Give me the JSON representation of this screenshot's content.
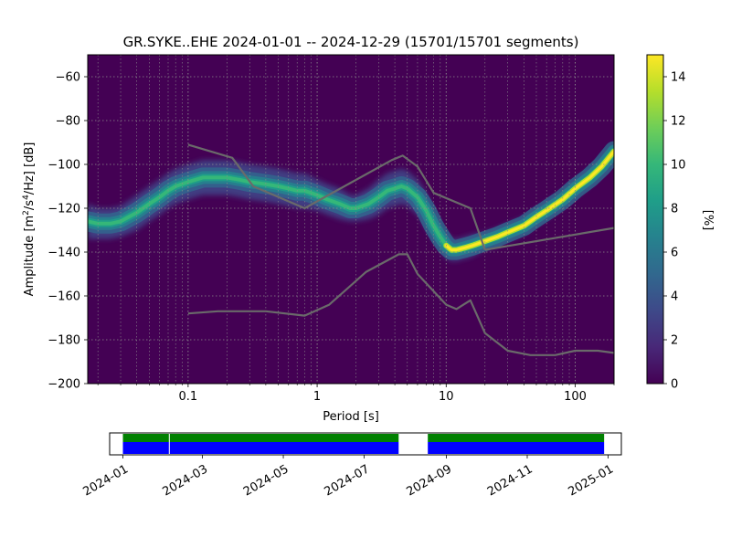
{
  "chart_data": [
    {
      "type": "heatmap",
      "title": "GR.SYKE..EHE   2024-01-01 -- 2024-12-29  (15701/15701 segments)",
      "xlabel": "Period [s]",
      "ylabel_main": "Amplitude [m",
      "ylabel_sup1": "2",
      "ylabel_mid": "/s",
      "ylabel_sup2": "4",
      "ylabel_end": "/Hz] [dB]",
      "xscale": "log",
      "xlim": [
        0.01667,
        200
      ],
      "ylim": [
        -200,
        -50
      ],
      "xticks": [
        0.1,
        1,
        10,
        100
      ],
      "xtick_labels": [
        "0.1",
        "1",
        "10",
        "100"
      ],
      "yticks": [
        -60,
        -80,
        -100,
        -120,
        -140,
        -160,
        -180,
        -200
      ],
      "ytick_labels": [
        "−60",
        "−80",
        "−100",
        "−120",
        "−140",
        "−160",
        "−180",
        "−200"
      ],
      "grid": true,
      "background_color": "#440154",
      "density_mode": {
        "x": [
          0.0167,
          0.02,
          0.025,
          0.03,
          0.04,
          0.05,
          0.06,
          0.07,
          0.08,
          0.1,
          0.13,
          0.16,
          0.2,
          0.25,
          0.3,
          0.4,
          0.5,
          0.6,
          0.7,
          0.8,
          1.0,
          1.2,
          1.5,
          1.8,
          2.0,
          2.5,
          3.0,
          3.5,
          4.0,
          4.5,
          5.0,
          6.0,
          7.0,
          8.0,
          9.0,
          10.0,
          11.0,
          12.0,
          14.0,
          16.0,
          20.0,
          25.0,
          30.0,
          40.0,
          50.0,
          60.0,
          80.0,
          100.0,
          130.0,
          160.0,
          200.0
        ],
        "y": [
          -126,
          -127,
          -127,
          -126,
          -122,
          -118,
          -115,
          -112,
          -110,
          -108,
          -106,
          -106,
          -106,
          -107,
          -108,
          -109,
          -110,
          -111,
          -112,
          -112,
          -114,
          -116,
          -118,
          -120,
          -120,
          -118,
          -115,
          -112,
          -111,
          -110,
          -111,
          -115,
          -121,
          -128,
          -133,
          -137,
          -139,
          -139,
          -138,
          -137,
          -135,
          -133,
          -131,
          -128,
          -124,
          -121,
          -116,
          -111,
          -106,
          -101,
          -94
        ],
        "halfwidth": [
          5,
          4,
          4,
          4,
          5,
          5,
          5,
          5,
          5,
          5,
          5,
          5,
          5,
          5,
          5,
          5,
          5,
          5,
          5,
          5,
          4,
          4,
          4,
          3,
          3,
          4,
          5,
          5,
          5,
          5,
          5,
          5,
          5,
          4,
          3,
          3,
          2,
          2,
          2,
          2,
          1,
          1,
          1,
          1,
          1,
          1,
          1,
          1,
          1,
          1,
          1
        ]
      },
      "reference_models": [
        {
          "x": [
            0.1,
            0.22,
            0.32,
            0.8,
            3.8,
            4.6,
            6.0,
            8.0,
            15.4,
            20.0
          ],
          "y": [
            -91,
            -97,
            -110,
            -120,
            -98,
            -96,
            -101,
            -113,
            -120,
            -139
          ]
        },
        {
          "x": [
            20.0,
            200.0
          ],
          "y": [
            -139,
            -129
          ]
        },
        {
          "x": [
            0.1,
            0.17,
            0.4,
            0.8,
            1.24,
            2.4,
            4.3,
            5.0,
            6.0,
            10.0,
            12.0,
            15.4,
            20.0,
            30.0,
            45.0,
            70.0,
            100.0,
            150.0,
            200.0
          ],
          "y": [
            -168,
            -167,
            -167,
            -169,
            -164,
            -149,
            -141,
            -141,
            -150,
            -164,
            -166,
            -162,
            -177,
            -185,
            -187,
            -187,
            -185,
            -185,
            -186
          ]
        }
      ],
      "reference_color": "#6a6a6a"
    },
    {
      "type": "heatmap",
      "role": "colorbar",
      "label": "[%]",
      "range": [
        0,
        15
      ],
      "ticks": [
        0,
        2,
        4,
        6,
        8,
        10,
        12,
        14
      ],
      "tick_labels": [
        "0",
        "2",
        "4",
        "6",
        "8",
        "10",
        "12",
        "14"
      ],
      "colormap": [
        "#440154",
        "#482878",
        "#3e4989",
        "#31688e",
        "#26828e",
        "#1f9e89",
        "#35b779",
        "#6ece58",
        "#b5de2b",
        "#fde725"
      ]
    },
    {
      "type": "bar",
      "role": "data-coverage",
      "xlim": [
        "2023-12-22",
        "2025-01-11"
      ],
      "tick_labels": [
        "2024-01",
        "2024-03",
        "2024-05",
        "2024-07",
        "2024-09",
        "2024-11",
        "2025-01"
      ],
      "tick_dates": [
        "2024-01-01",
        "2024-03-01",
        "2024-05-01",
        "2024-07-01",
        "2024-09-01",
        "2024-11-01",
        "2025-01-01"
      ],
      "segments": [
        {
          "start": "2024-01-01",
          "end": "2024-02-05"
        },
        {
          "start": "2024-02-05",
          "end": "2024-07-27"
        },
        {
          "start": "2024-08-18",
          "end": "2024-12-29"
        }
      ],
      "colors": {
        "top": "#008000",
        "bottom": "#0000ff"
      }
    }
  ]
}
